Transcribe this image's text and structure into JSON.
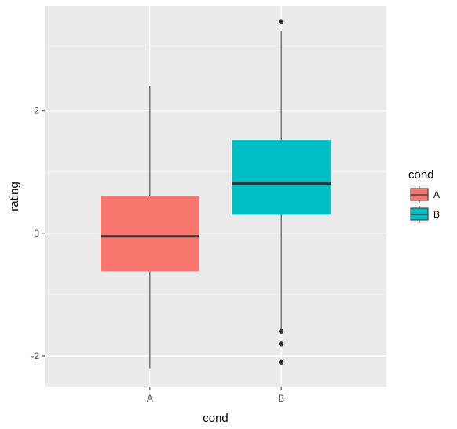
{
  "chart_data": {
    "type": "boxplot",
    "xlabel": "cond",
    "ylabel": "rating",
    "categories": [
      "A",
      "B"
    ],
    "ylim": [
      -2.5,
      3.7
    ],
    "yticks": [
      -2,
      0,
      2
    ],
    "ytick_labels": [
      "-2",
      "0",
      "2"
    ],
    "grid": true,
    "legend": {
      "title": "cond",
      "position": "right",
      "entries": [
        {
          "label": "A",
          "color": "#F8766D"
        },
        {
          "label": "B",
          "color": "#00BFC4"
        }
      ]
    },
    "boxes": [
      {
        "category": "A",
        "color": "#F8766D",
        "whisker_low": -2.2,
        "q1": -0.62,
        "median": -0.05,
        "q3": 0.61,
        "whisker_high": 2.4,
        "outliers": []
      },
      {
        "category": "B",
        "color": "#00BFC4",
        "whisker_low": -1.6,
        "q1": 0.3,
        "median": 0.81,
        "q3": 1.52,
        "whisker_high": 3.3,
        "outliers": [
          3.45,
          -1.6,
          -1.8,
          -2.1
        ]
      }
    ]
  }
}
